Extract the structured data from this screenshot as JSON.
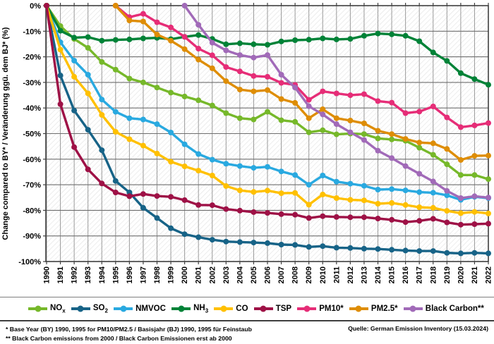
{
  "chart": {
    "y_axis_title": "Change compared to BY* / Veränderung ggü. dem BJ* (%)",
    "y_tick_labels": [
      "0%",
      "-10%",
      "-20%",
      "-30%",
      "-40%",
      "-50%",
      "-60%",
      "-70%",
      "-80%",
      "-90%",
      "-100%"
    ]
  },
  "chart_data": {
    "type": "line",
    "title": "",
    "xlabel": "",
    "ylabel": "Change compared to BY* / Veränderung ggü. dem BJ* (%)",
    "ylim": [
      -100,
      0
    ],
    "grid": true,
    "legend_position": "bottom",
    "x": [
      1990,
      1991,
      1992,
      1993,
      1994,
      1995,
      1996,
      1997,
      1998,
      1999,
      2000,
      2001,
      2002,
      2003,
      2004,
      2005,
      2006,
      2007,
      2008,
      2009,
      2010,
      2011,
      2012,
      2013,
      2014,
      2015,
      2016,
      2017,
      2018,
      2019,
      2020,
      2021,
      2022
    ],
    "series": [
      {
        "name": "NOx",
        "color": "#76B82A",
        "values": [
          0,
          -8,
          -13,
          -16.5,
          -22,
          -25,
          -28.5,
          -30,
          -32,
          -34,
          -35.5,
          -37,
          -39,
          -42,
          -44,
          -44.5,
          -41.5,
          -44.8,
          -45.4,
          -49.5,
          -48.7,
          -50.3,
          -50,
          -50.2,
          -51.9,
          -52.3,
          -52.8,
          -55.5,
          -58.3,
          -62,
          -66.2,
          -66.2,
          -67.8
        ]
      },
      {
        "name": "SO2",
        "color": "#176387",
        "values": [
          0,
          -27.3,
          -41,
          -48.5,
          -56.5,
          -68.5,
          -73,
          -79,
          -83,
          -87,
          -89.3,
          -90.5,
          -91.5,
          -92.2,
          -92.4,
          -92.6,
          -92.8,
          -93.4,
          -93.5,
          -94.3,
          -94,
          -94.6,
          -94.7,
          -95,
          -95.1,
          -95.4,
          -95.7,
          -95.9,
          -95.9,
          -96.6,
          -96.8,
          -96.6,
          -96.8
        ]
      },
      {
        "name": "NMVOC",
        "color": "#29A9E0",
        "values": [
          0,
          -14.3,
          -21.5,
          -27,
          -36.7,
          -41.5,
          -44,
          -44.5,
          -46.3,
          -49.6,
          -54.2,
          -58,
          -60.2,
          -61.8,
          -62.7,
          -63.4,
          -63,
          -64.8,
          -66.2,
          -70,
          -66.4,
          -68.8,
          -69.6,
          -70.4,
          -71.9,
          -71.7,
          -72.2,
          -72.9,
          -73.1,
          -74.1,
          -75.9,
          -74.7,
          -75.2
        ]
      },
      {
        "name": "NH3",
        "color": "#008237",
        "values": [
          0,
          -9.8,
          -12.5,
          -12.3,
          -13.7,
          -13.4,
          -13.2,
          -12.8,
          -12.6,
          -13.1,
          -12.2,
          -11.5,
          -13,
          -15.1,
          -14.7,
          -15.1,
          -15.3,
          -14,
          -13.5,
          -13.3,
          -12.8,
          -13.2,
          -13,
          -11.8,
          -10.9,
          -11.2,
          -11.8,
          -13.9,
          -18.3,
          -21.6,
          -26.4,
          -28.7,
          -30.9
        ]
      },
      {
        "name": "CO",
        "color": "#FFC000",
        "values": [
          0,
          -17.2,
          -27.8,
          -34.3,
          -42.7,
          -49.3,
          -52.2,
          -54.7,
          -57.8,
          -61,
          -62.8,
          -64.5,
          -66.4,
          -70.5,
          -72.2,
          -72.8,
          -72.3,
          -73.3,
          -73.2,
          -77.8,
          -73.8,
          -75.2,
          -75.9,
          -76.1,
          -77.4,
          -77.1,
          -77.9,
          -78.8,
          -79,
          -80.2,
          -81.1,
          -80.6,
          -81.2
        ]
      },
      {
        "name": "TSP",
        "color": "#9E1146",
        "values": [
          0,
          -38.5,
          -55.3,
          -64,
          -69.5,
          -73,
          -74.5,
          -73.6,
          -74.4,
          -74.7,
          -76,
          -77.9,
          -78,
          -79.5,
          -80.1,
          -80.7,
          -81,
          -81.5,
          -81.7,
          -83,
          -82.3,
          -82.6,
          -82.7,
          -82.7,
          -83.2,
          -83.7,
          -84.6,
          -84.1,
          -83.3,
          -84.7,
          -85.6,
          -85.4,
          -85.2
        ]
      },
      {
        "name": "PM10*",
        "color": "#E62D77",
        "values": [
          null,
          null,
          null,
          null,
          null,
          0,
          -4.5,
          -3.2,
          -6.5,
          -8.5,
          -12.2,
          -16.8,
          -19.4,
          -24,
          -25.7,
          -27.5,
          -27.8,
          -30.2,
          -31,
          -36.8,
          -33.5,
          -34.3,
          -35,
          -34.6,
          -37.3,
          -37.9,
          -42,
          -41.4,
          -39.4,
          -43.7,
          -47.5,
          -46.8,
          -45.9
        ]
      },
      {
        "name": "PM2.5*",
        "color": "#DE8D05",
        "values": [
          null,
          null,
          null,
          null,
          null,
          0,
          -5.8,
          -6.2,
          -11.3,
          -13.7,
          -17,
          -21.1,
          -24.5,
          -29.5,
          -32.8,
          -33.5,
          -33,
          -36.5,
          -38,
          -44,
          -40.5,
          -44,
          -44.9,
          -46,
          -48.9,
          -50.2,
          -52.1,
          -53.5,
          -53.8,
          -56,
          -60.3,
          -58.7,
          -58.6
        ]
      },
      {
        "name": "Black Carbon**",
        "color": "#A16AB8",
        "values": [
          null,
          null,
          null,
          null,
          null,
          null,
          null,
          null,
          null,
          null,
          0,
          -7.5,
          -14.5,
          -17.5,
          -19.3,
          -20.3,
          -19.3,
          -27,
          -32,
          -39.3,
          -42.5,
          -46.3,
          -49.5,
          -52.5,
          -56.7,
          -59.6,
          -62.7,
          -65.7,
          -68.7,
          -72.4,
          -75.2,
          -74.5,
          -75
        ]
      }
    ]
  },
  "legend": {
    "items": [
      {
        "pre": "NO",
        "sub": "x",
        "post": ""
      },
      {
        "pre": "SO",
        "sub": "2",
        "post": ""
      },
      {
        "pre": "NMVOC",
        "sub": "",
        "post": ""
      },
      {
        "pre": "NH",
        "sub": "3",
        "post": ""
      },
      {
        "pre": "CO",
        "sub": "",
        "post": ""
      },
      {
        "pre": "TSP",
        "sub": "",
        "post": ""
      },
      {
        "pre": "PM10*",
        "sub": "",
        "post": ""
      },
      {
        "pre": "PM2.5*",
        "sub": "",
        "post": ""
      },
      {
        "pre": "Black Carbon**",
        "sub": "",
        "post": ""
      }
    ]
  },
  "footnotes": {
    "line1": "* Base Year (BY) 1990, 1995 for PM10/PM2.5 / Basisjahr (BJ) 1990, 1995 für Feinstaub",
    "line2": "** Black Carbon emissions  from 2000 / Black Carbon Emissionen erst ab 2000"
  },
  "source": "Quelle: German Emission Inventory (15.03.2024)"
}
